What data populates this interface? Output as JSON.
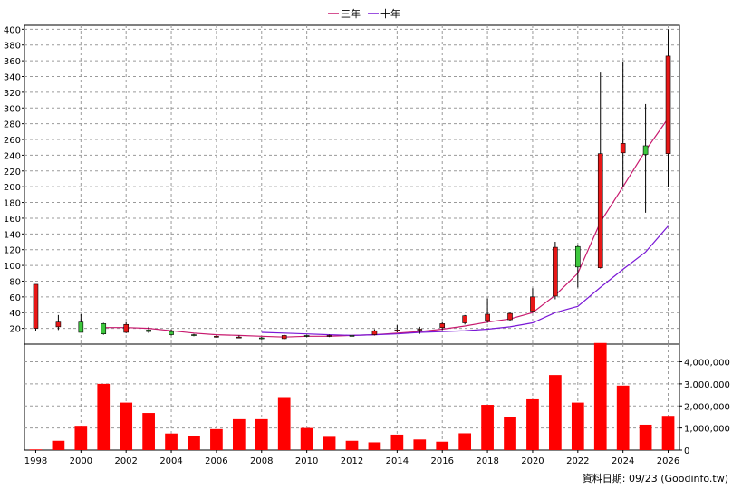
{
  "legend": [
    {
      "label": "三年",
      "color": "#c8196e"
    },
    {
      "label": "十年",
      "color": "#7a18d6"
    }
  ],
  "footer": "資料日期: 09/23 (Goodinfo.tw)",
  "chart_data": {
    "type": "candlestick+bar",
    "price_axis": {
      "min": 0,
      "max": 405,
      "ticks": [
        20,
        40,
        60,
        80,
        100,
        120,
        140,
        160,
        180,
        200,
        220,
        240,
        260,
        280,
        300,
        320,
        340,
        360,
        380,
        400
      ],
      "grid": true
    },
    "volume_axis": {
      "min": 0,
      "max": 4800000,
      "ticks": [
        0,
        1000000,
        2000000,
        3000000,
        4000000
      ],
      "tick_labels": [
        "0",
        "1,000,000",
        "2,000,000",
        "3,000,000",
        "4,000,000"
      ]
    },
    "x_axis": {
      "labels": [
        "1998",
        "2000",
        "2002",
        "2004",
        "2006",
        "2008",
        "2010",
        "2012",
        "2014",
        "2016",
        "2018",
        "2020",
        "2022",
        "2024",
        "2026"
      ]
    },
    "years": [
      1998,
      1999,
      2000,
      2001,
      2002,
      2003,
      2004,
      2005,
      2006,
      2007,
      2008,
      2009,
      2010,
      2011,
      2012,
      2013,
      2014,
      2015,
      2016,
      2017,
      2018,
      2019,
      2020,
      2021,
      2022,
      2023,
      2024,
      2025,
      2026
    ],
    "candles": [
      {
        "open": 20,
        "high": 76,
        "low": 17,
        "close": 76
      },
      {
        "open": 22,
        "high": 37,
        "low": 18,
        "close": 28
      },
      {
        "open": 28,
        "high": 38,
        "low": 15,
        "close": 15
      },
      {
        "open": 26,
        "high": 27,
        "low": 12,
        "close": 13
      },
      {
        "open": 15,
        "high": 28,
        "low": 14,
        "close": 25
      },
      {
        "open": 18,
        "high": 22,
        "low": 14,
        "close": 16
      },
      {
        "open": 16,
        "high": 19,
        "low": 11,
        "close": 12
      },
      {
        "open": 12,
        "high": 13,
        "low": 10,
        "close": 11
      },
      {
        "open": 10,
        "high": 11,
        "low": 9,
        "close": 10
      },
      {
        "open": 9,
        "high": 11,
        "low": 8,
        "close": 9
      },
      {
        "open": 8,
        "high": 9,
        "low": 6,
        "close": 7
      },
      {
        "open": 7,
        "high": 12,
        "low": 6,
        "close": 11
      },
      {
        "open": 11,
        "high": 12,
        "low": 9,
        "close": 10
      },
      {
        "open": 10,
        "high": 12,
        "low": 9,
        "close": 11
      },
      {
        "open": 11,
        "high": 13,
        "low": 9,
        "close": 10
      },
      {
        "open": 12,
        "high": 19,
        "low": 11,
        "close": 17
      },
      {
        "open": 18,
        "high": 24,
        "low": 15,
        "close": 18
      },
      {
        "open": 18,
        "high": 22,
        "low": 13,
        "close": 19
      },
      {
        "open": 21,
        "high": 28,
        "low": 18,
        "close": 26
      },
      {
        "open": 27,
        "high": 37,
        "low": 25,
        "close": 36
      },
      {
        "open": 30,
        "high": 58,
        "low": 27,
        "close": 38
      },
      {
        "open": 31,
        "high": 40,
        "low": 29,
        "close": 39
      },
      {
        "open": 42,
        "high": 71,
        "low": 40,
        "close": 60
      },
      {
        "open": 61,
        "high": 130,
        "low": 57,
        "close": 123
      },
      {
        "open": 124,
        "high": 126,
        "low": 72,
        "close": 98
      },
      {
        "open": 97,
        "high": 345,
        "low": 96,
        "close": 242
      },
      {
        "open": 243,
        "high": 358,
        "low": 200,
        "close": 255
      },
      {
        "open": 252,
        "high": 305,
        "low": 167,
        "close": 241
      },
      {
        "open": 242,
        "high": 400,
        "low": 200,
        "close": 366
      }
    ],
    "series": [
      {
        "name": "三年",
        "color": "#c8196e",
        "values": [
          null,
          null,
          null,
          21,
          21,
          20,
          17,
          14,
          12,
          11,
          10,
          9,
          10,
          10,
          11,
          12,
          14,
          16,
          19,
          23,
          28,
          32,
          40,
          62,
          90,
          155,
          200,
          246,
          287
        ]
      },
      {
        "name": "十年",
        "color": "#7a18d6",
        "values": [
          null,
          null,
          null,
          null,
          null,
          null,
          null,
          null,
          null,
          null,
          15,
          14,
          13,
          12,
          11,
          12,
          13,
          15,
          16,
          17,
          19,
          22,
          27,
          40,
          48,
          72,
          95,
          117,
          150
        ]
      }
    ],
    "volume": [
      30000,
      420000,
      1100000,
      3000000,
      2150000,
      1680000,
      750000,
      650000,
      950000,
      1400000,
      1400000,
      2400000,
      1000000,
      600000,
      420000,
      350000,
      700000,
      480000,
      380000,
      760000,
      2050000,
      1500000,
      2300000,
      3400000,
      2150000,
      4850000,
      2920000,
      1150000,
      1550000
    ],
    "colors": {
      "up": "#e81717",
      "down": "#3ec83e",
      "volume": "#ff0000"
    }
  }
}
